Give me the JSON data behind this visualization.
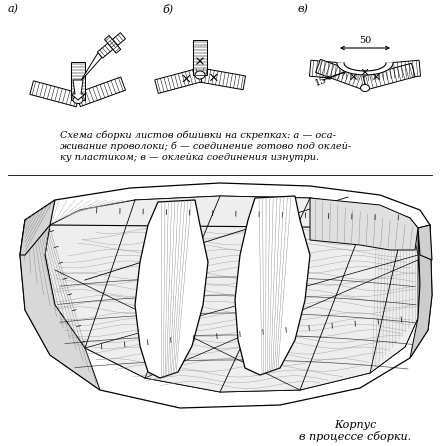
{
  "background_color": "#ffffff",
  "caption_top_line1": "Схема сборки листов обшивки на скрепках: а — оса-",
  "caption_top_line2": "живание проволоки; б — соединение готово под оклей-",
  "caption_top_line3": "ку пластиком; в — оклейка соединения изнутри.",
  "caption_bottom_line1": "Корпус",
  "caption_bottom_line2": "в процессе сборки.",
  "label_a": "а)",
  "label_b": "б)",
  "label_v": "в)",
  "dim_50": "50",
  "dim_15": "15",
  "fig_width": 4.4,
  "fig_height": 4.46,
  "dpi": 100
}
